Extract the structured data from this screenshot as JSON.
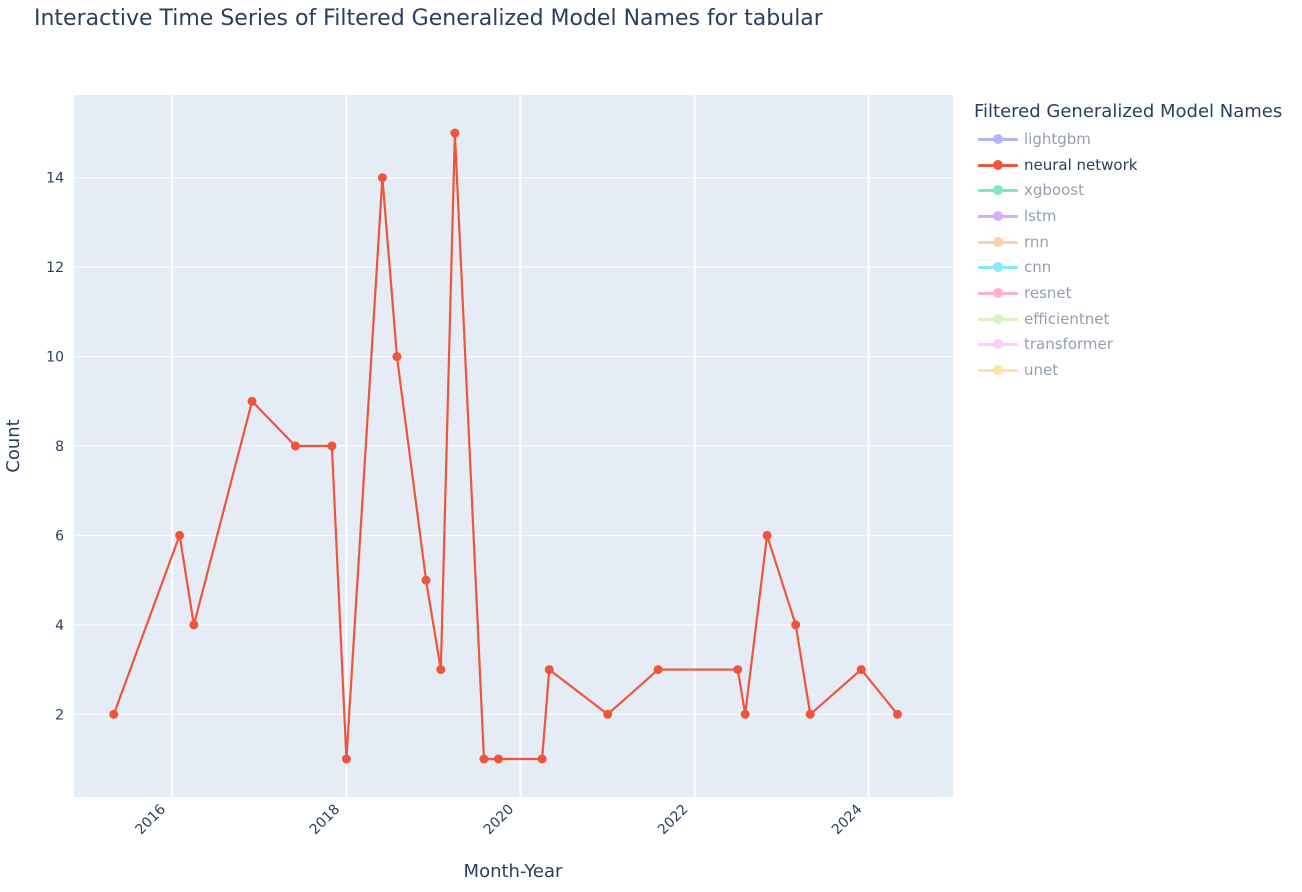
{
  "chart_data": {
    "type": "line",
    "title": "Interactive Time Series of Filtered Generalized Model Names for tabular",
    "xlabel": "Month-Year",
    "ylabel": "Count",
    "x_ticks": [
      "2016",
      "2018",
      "2020",
      "2022",
      "2024"
    ],
    "y_ticks": [
      2,
      4,
      6,
      8,
      10,
      12,
      14
    ],
    "xlim": [
      "2014-11-15",
      "2024-12-20"
    ],
    "ylim": [
      0.15,
      15.85
    ],
    "grid": true,
    "plot_background": "#e5ecf6",
    "legend": {
      "title": "Filtered Generalized Model Names",
      "placement": "right",
      "items": [
        {
          "name": "lightgbm",
          "color": "#636efa",
          "active": false
        },
        {
          "name": "neural network",
          "color": "#ef553b",
          "active": true
        },
        {
          "name": "xgboost",
          "color": "#00cc96",
          "active": false
        },
        {
          "name": "lstm",
          "color": "#ab63fa",
          "active": false
        },
        {
          "name": "rnn",
          "color": "#ffa15a",
          "active": false
        },
        {
          "name": "cnn",
          "color": "#19d3f3",
          "active": false
        },
        {
          "name": "resnet",
          "color": "#ff6692",
          "active": false
        },
        {
          "name": "efficientnet",
          "color": "#b6e880",
          "active": false
        },
        {
          "name": "transformer",
          "color": "#ff97ff",
          "active": false
        },
        {
          "name": "unet",
          "color": "#fecb52",
          "active": false
        }
      ]
    },
    "series": [
      {
        "name": "neural network",
        "color": "#ef553b",
        "points": [
          {
            "x": "2015-05-01",
            "y": 2
          },
          {
            "x": "2016-02-01",
            "y": 6
          },
          {
            "x": "2016-04-01",
            "y": 4
          },
          {
            "x": "2016-12-01",
            "y": 9
          },
          {
            "x": "2017-06-01",
            "y": 8
          },
          {
            "x": "2017-11-01",
            "y": 8
          },
          {
            "x": "2018-01-01",
            "y": 1
          },
          {
            "x": "2018-06-01",
            "y": 14
          },
          {
            "x": "2018-08-01",
            "y": 10
          },
          {
            "x": "2018-12-01",
            "y": 5
          },
          {
            "x": "2019-02-01",
            "y": 3
          },
          {
            "x": "2019-04-01",
            "y": 15
          },
          {
            "x": "2019-08-01",
            "y": 1
          },
          {
            "x": "2019-10-01",
            "y": 1
          },
          {
            "x": "2020-04-01",
            "y": 1
          },
          {
            "x": "2020-05-01",
            "y": 3
          },
          {
            "x": "2021-01-01",
            "y": 2
          },
          {
            "x": "2021-08-01",
            "y": 3
          },
          {
            "x": "2022-07-01",
            "y": 3
          },
          {
            "x": "2022-08-01",
            "y": 2
          },
          {
            "x": "2022-11-01",
            "y": 6
          },
          {
            "x": "2023-03-01",
            "y": 4
          },
          {
            "x": "2023-05-01",
            "y": 2
          },
          {
            "x": "2023-12-01",
            "y": 3
          },
          {
            "x": "2024-05-01",
            "y": 2
          }
        ]
      }
    ]
  }
}
